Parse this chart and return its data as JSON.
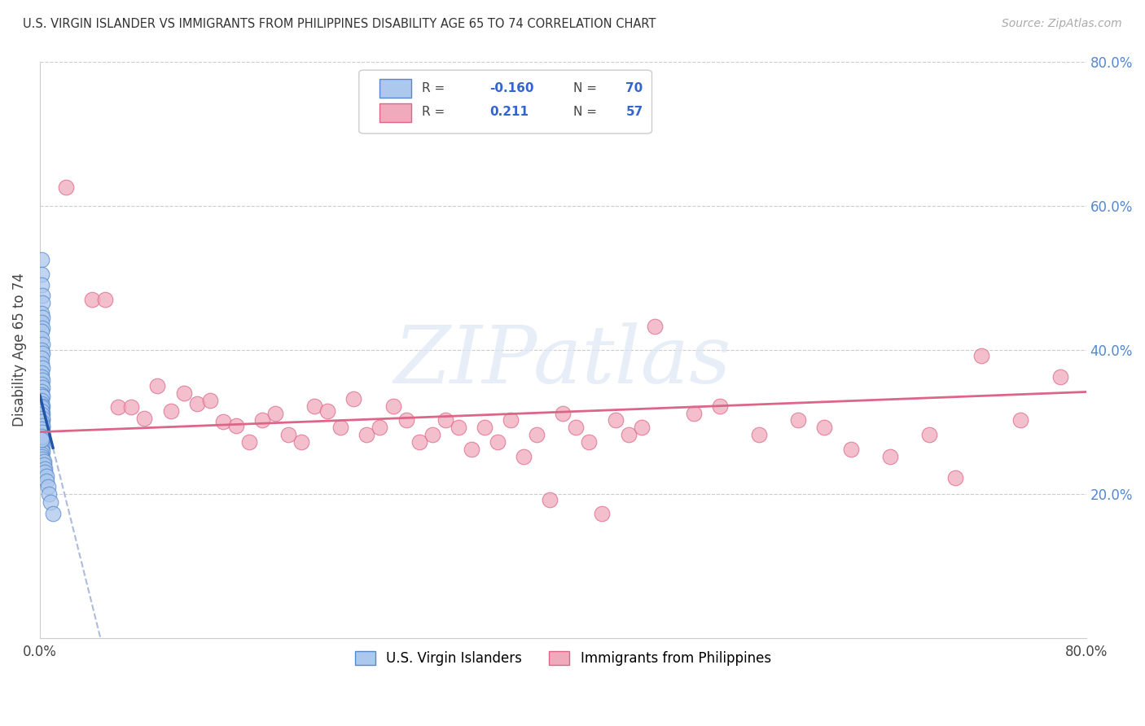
{
  "title": "U.S. VIRGIN ISLANDER VS IMMIGRANTS FROM PHILIPPINES DISABILITY AGE 65 TO 74 CORRELATION CHART",
  "source": "Source: ZipAtlas.com",
  "ylabel": "Disability Age 65 to 74",
  "xmin": 0.0,
  "xmax": 0.8,
  "ymin": 0.0,
  "ymax": 0.8,
  "yticks": [
    0.0,
    0.2,
    0.4,
    0.6,
    0.8
  ],
  "ytick_labels": [
    "",
    "20.0%",
    "40.0%",
    "60.0%",
    "80.0%"
  ],
  "xticks": [
    0.0,
    0.2,
    0.4,
    0.6,
    0.8
  ],
  "xtick_labels": [
    "0.0%",
    "",
    "",
    "",
    "80.0%"
  ],
  "blue_R": -0.16,
  "blue_N": 70,
  "pink_R": 0.211,
  "pink_N": 57,
  "blue_color": "#adc8ed",
  "pink_color": "#f0aabb",
  "blue_edge": "#5588cc",
  "pink_edge": "#dd6688",
  "blue_line_color": "#2255aa",
  "pink_line_color": "#dd6688",
  "blue_dashed_color": "#aabbdd",
  "watermark_text": "ZIPatlas",
  "legend_label_blue": "U.S. Virgin Islanders",
  "legend_label_pink": "Immigrants from Philippines",
  "blue_scatter_x": [
    0.001,
    0.001,
    0.001,
    0.002,
    0.002,
    0.001,
    0.002,
    0.001,
    0.002,
    0.001,
    0.001,
    0.002,
    0.001,
    0.002,
    0.001,
    0.001,
    0.002,
    0.001,
    0.001,
    0.002,
    0.001,
    0.002,
    0.001,
    0.001,
    0.002,
    0.001,
    0.001,
    0.002,
    0.001,
    0.001,
    0.002,
    0.001,
    0.001,
    0.002,
    0.001,
    0.001,
    0.002,
    0.001,
    0.001,
    0.002,
    0.001,
    0.002,
    0.001,
    0.001,
    0.002,
    0.001,
    0.002,
    0.001,
    0.001,
    0.002,
    0.003,
    0.003,
    0.004,
    0.004,
    0.005,
    0.005,
    0.006,
    0.007,
    0.008,
    0.01,
    0.001,
    0.001,
    0.001,
    0.002,
    0.001,
    0.002,
    0.001,
    0.002,
    0.001,
    0.001
  ],
  "blue_scatter_y": [
    0.525,
    0.505,
    0.49,
    0.475,
    0.465,
    0.45,
    0.445,
    0.438,
    0.43,
    0.425,
    0.415,
    0.408,
    0.4,
    0.395,
    0.388,
    0.38,
    0.375,
    0.368,
    0.362,
    0.358,
    0.352,
    0.348,
    0.342,
    0.338,
    0.335,
    0.33,
    0.325,
    0.322,
    0.318,
    0.315,
    0.312,
    0.308,
    0.305,
    0.302,
    0.298,
    0.295,
    0.292,
    0.288,
    0.285,
    0.282,
    0.278,
    0.275,
    0.272,
    0.268,
    0.265,
    0.262,
    0.258,
    0.255,
    0.252,
    0.248,
    0.245,
    0.24,
    0.235,
    0.23,
    0.225,
    0.218,
    0.21,
    0.2,
    0.188,
    0.172,
    0.32,
    0.315,
    0.31,
    0.305,
    0.3,
    0.295,
    0.29,
    0.285,
    0.28,
    0.275
  ],
  "pink_scatter_x": [
    0.02,
    0.04,
    0.05,
    0.06,
    0.07,
    0.08,
    0.09,
    0.1,
    0.11,
    0.12,
    0.13,
    0.14,
    0.15,
    0.16,
    0.17,
    0.18,
    0.19,
    0.2,
    0.21,
    0.22,
    0.23,
    0.24,
    0.25,
    0.26,
    0.27,
    0.28,
    0.29,
    0.3,
    0.31,
    0.32,
    0.33,
    0.34,
    0.35,
    0.36,
    0.37,
    0.38,
    0.39,
    0.4,
    0.41,
    0.42,
    0.43,
    0.44,
    0.45,
    0.46,
    0.47,
    0.5,
    0.52,
    0.55,
    0.58,
    0.6,
    0.62,
    0.65,
    0.68,
    0.7,
    0.72,
    0.75,
    0.78
  ],
  "pink_scatter_y": [
    0.625,
    0.47,
    0.47,
    0.32,
    0.32,
    0.305,
    0.35,
    0.315,
    0.34,
    0.325,
    0.33,
    0.3,
    0.295,
    0.272,
    0.302,
    0.312,
    0.282,
    0.272,
    0.322,
    0.315,
    0.292,
    0.332,
    0.282,
    0.292,
    0.322,
    0.302,
    0.272,
    0.282,
    0.302,
    0.292,
    0.262,
    0.292,
    0.272,
    0.302,
    0.252,
    0.282,
    0.192,
    0.312,
    0.292,
    0.272,
    0.172,
    0.302,
    0.282,
    0.292,
    0.432,
    0.312,
    0.322,
    0.282,
    0.302,
    0.292,
    0.262,
    0.252,
    0.282,
    0.222,
    0.392,
    0.302,
    0.362
  ]
}
